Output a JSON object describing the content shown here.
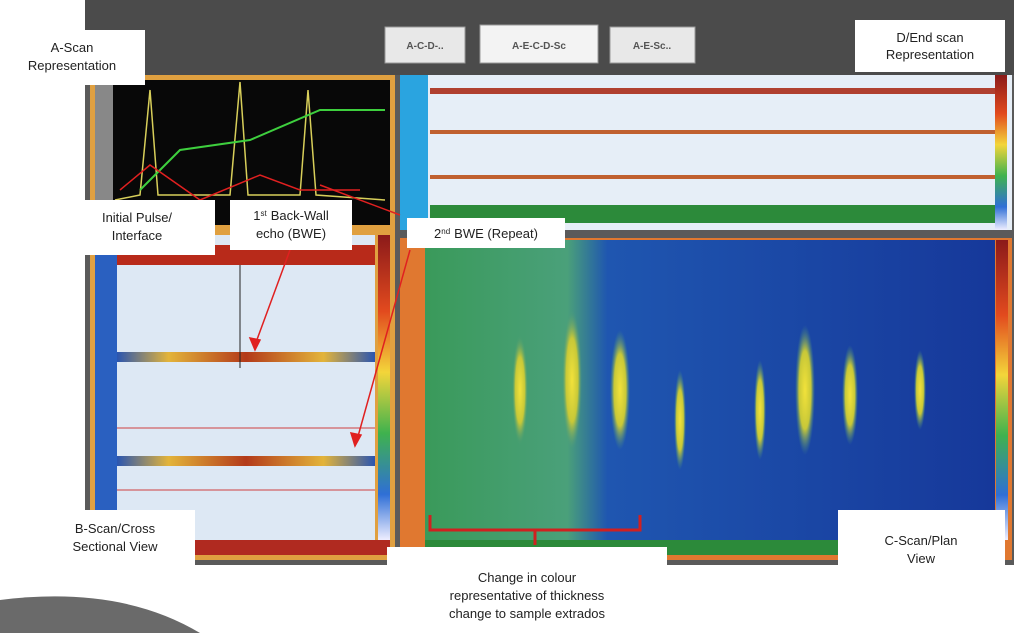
{
  "tabs": [
    "A-C-D-..",
    "A-E-C-D-Sc",
    "A-E-Sc.."
  ],
  "annotations": {
    "a_scan": [
      "A-Scan",
      "Representation"
    ],
    "d_scan": [
      "D/End scan",
      "Representation"
    ],
    "initial_pulse": [
      "Initial Pulse/",
      "Interface"
    ],
    "first_bwe": {
      "number": "1",
      "suffix": "st",
      "line1": "Back-Wall",
      "line2": "echo (BWE)"
    },
    "second_bwe": {
      "number": "2",
      "suffix": "nd",
      "text": "BWE (Repeat)"
    },
    "b_scan": [
      "B-Scan/Cross",
      "Sectional View"
    ],
    "c_scan": [
      "C-Scan/Plan",
      "View"
    ],
    "colour_change": [
      "Change in colour",
      "representative of thickness",
      "change to sample extrados"
    ]
  }
}
